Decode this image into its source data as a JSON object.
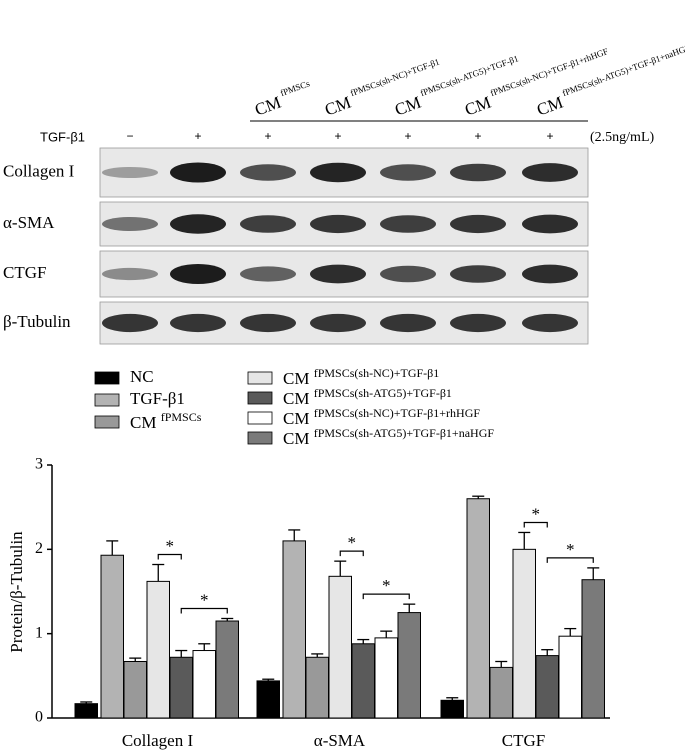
{
  "blot": {
    "headers": [
      {
        "base": "CM",
        "sup": "fPMSCs"
      },
      {
        "base": "CM",
        "sup": "fPMSCs(sh-NC)+TGF-β1"
      },
      {
        "base": "CM",
        "sup": "fPMSCs(sh-ATG5)+TGF-β1"
      },
      {
        "base": "CM",
        "sup": "fPMSCs(sh-NC)+TGF-β1+rhHGF"
      },
      {
        "base": "CM",
        "sup": "fPMSCs(sh-ATG5)+TGF-β1+naHGF"
      }
    ],
    "treatment_label": "TGF-β1",
    "treatment": [
      "−",
      "+",
      "+",
      "+",
      "+",
      "+",
      "+"
    ],
    "dose": "(2.5ng/mL)",
    "rows": [
      "Collagen I",
      "α-SMA",
      "CTGF",
      "β-Tubulin"
    ]
  },
  "chart_data": {
    "type": "bar",
    "y_label": "Protein/β-Tubulin",
    "categories": [
      "Collagen I",
      "α-SMA",
      "CTGF"
    ],
    "ylim": [
      0,
      3
    ],
    "yticks": [
      0,
      1,
      2,
      3
    ],
    "series": [
      {
        "name": "NC",
        "color": "#000000",
        "values": [
          0.17,
          0.44,
          0.21
        ],
        "errors": [
          0.02,
          0.02,
          0.03
        ]
      },
      {
        "name": "TGF-β1",
        "color": "#b3b3b3",
        "values": [
          1.93,
          2.1,
          2.6
        ],
        "errors": [
          0.17,
          0.13,
          0.03
        ]
      },
      {
        "name": "CM fPMSCs",
        "color": "#999999",
        "values": [
          0.67,
          0.72,
          0.6
        ],
        "errors": [
          0.04,
          0.04,
          0.07
        ]
      },
      {
        "name": "CM fPMSCs(sh-NC)+TGF-β1",
        "color": "#e6e6e6",
        "values": [
          1.62,
          1.68,
          2.0
        ],
        "errors": [
          0.2,
          0.18,
          0.2
        ]
      },
      {
        "name": "CM fPMSCs(sh-ATG5)+TGF-β1",
        "color": "#5a5a5a",
        "values": [
          0.72,
          0.88,
          0.74
        ],
        "errors": [
          0.08,
          0.05,
          0.07
        ]
      },
      {
        "name": "CM fPMSCs(sh-NC)+TGF-β1+rhHGF",
        "color": "#ffffff",
        "values": [
          0.8,
          0.95,
          0.97
        ],
        "errors": [
          0.08,
          0.08,
          0.09
        ]
      },
      {
        "name": "CM fPMSCs(sh-ATG5)+TGF-β1+naHGF",
        "color": "#7a7a7a",
        "values": [
          1.15,
          1.25,
          1.64
        ],
        "errors": [
          0.03,
          0.1,
          0.14
        ]
      }
    ],
    "annotations": [
      {
        "category": 0,
        "from": 3,
        "to": 4,
        "label": "*"
      },
      {
        "category": 0,
        "from": 4,
        "to": 6,
        "label": "*"
      },
      {
        "category": 1,
        "from": 3,
        "to": 4,
        "label": "*"
      },
      {
        "category": 1,
        "from": 4,
        "to": 6,
        "label": "*"
      },
      {
        "category": 2,
        "from": 3,
        "to": 4,
        "label": "*"
      },
      {
        "category": 2,
        "from": 4,
        "to": 6,
        "label": "*"
      }
    ]
  }
}
